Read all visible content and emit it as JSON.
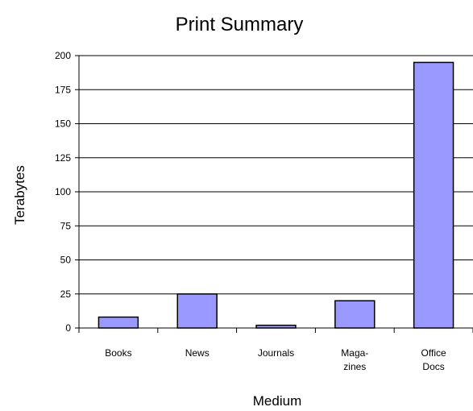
{
  "chart_data": {
    "type": "bar",
    "title": "Print Summary",
    "xlabel": "Medium",
    "ylabel": "Terabytes",
    "categories": [
      [
        "Books"
      ],
      [
        "News"
      ],
      [
        "Journals"
      ],
      [
        "Maga-",
        "zines"
      ],
      [
        "Office",
        "Docs"
      ]
    ],
    "values": [
      8,
      25,
      2,
      20,
      195
    ],
    "ylim": [
      0,
      200
    ],
    "yticks": [
      0,
      25,
      50,
      75,
      100,
      125,
      150,
      175,
      200
    ],
    "grid": true,
    "legend": "none",
    "colors": {
      "bar_fill": "#9999ff",
      "bar_stroke": "#000000",
      "grid": "#000000"
    }
  }
}
